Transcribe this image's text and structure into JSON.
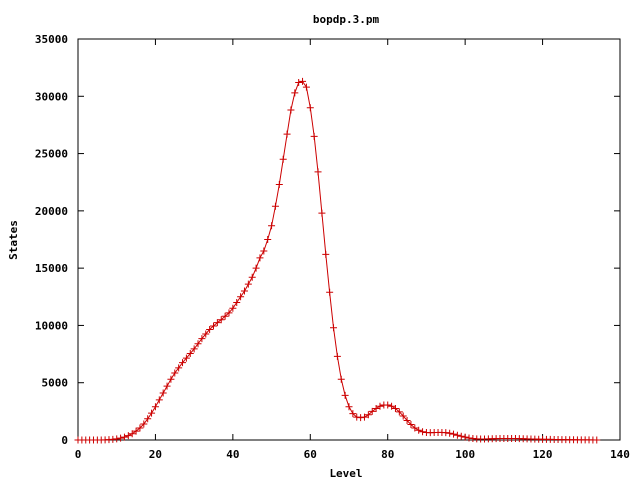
{
  "chart_data": {
    "type": "line",
    "title": "bopdp.3.pm",
    "xlabel": "Level",
    "ylabel": "States",
    "xlim": [
      0,
      140
    ],
    "ylim": [
      0,
      35000
    ],
    "xticks": [
      0,
      20,
      40,
      60,
      80,
      100,
      120,
      140
    ],
    "yticks": [
      0,
      5000,
      10000,
      15000,
      20000,
      25000,
      30000,
      35000
    ],
    "grid": false,
    "legend": "none",
    "series": [
      {
        "color": "#cc0000",
        "marker": "plus",
        "points": [
          [
            0,
            0
          ],
          [
            1,
            0
          ],
          [
            2,
            0
          ],
          [
            3,
            0
          ],
          [
            4,
            0
          ],
          [
            5,
            0
          ],
          [
            6,
            0
          ],
          [
            7,
            10
          ],
          [
            8,
            30
          ],
          [
            9,
            60
          ],
          [
            10,
            100
          ],
          [
            11,
            160
          ],
          [
            12,
            250
          ],
          [
            13,
            380
          ],
          [
            14,
            550
          ],
          [
            15,
            780
          ],
          [
            16,
            1050
          ],
          [
            17,
            1400
          ],
          [
            18,
            1850
          ],
          [
            19,
            2350
          ],
          [
            20,
            2900
          ],
          [
            21,
            3500
          ],
          [
            22,
            4100
          ],
          [
            23,
            4700
          ],
          [
            24,
            5300
          ],
          [
            25,
            5850
          ],
          [
            26,
            6300
          ],
          [
            27,
            6750
          ],
          [
            28,
            7150
          ],
          [
            29,
            7550
          ],
          [
            30,
            7950
          ],
          [
            31,
            8400
          ],
          [
            32,
            8850
          ],
          [
            33,
            9250
          ],
          [
            34,
            9650
          ],
          [
            35,
            9950
          ],
          [
            36,
            10250
          ],
          [
            37,
            10500
          ],
          [
            38,
            10800
          ],
          [
            39,
            11100
          ],
          [
            40,
            11500
          ],
          [
            41,
            12000
          ],
          [
            42,
            12500
          ],
          [
            43,
            13000
          ],
          [
            44,
            13600
          ],
          [
            45,
            14200
          ],
          [
            46,
            15000
          ],
          [
            47,
            15900
          ],
          [
            48,
            16500
          ],
          [
            49,
            17500
          ],
          [
            50,
            18700
          ],
          [
            51,
            20400
          ],
          [
            52,
            22300
          ],
          [
            53,
            24500
          ],
          [
            54,
            26700
          ],
          [
            55,
            28800
          ],
          [
            56,
            30300
          ],
          [
            57,
            31200
          ],
          [
            58,
            31300
          ],
          [
            59,
            30800
          ],
          [
            60,
            29000
          ],
          [
            61,
            26500
          ],
          [
            62,
            23400
          ],
          [
            63,
            19800
          ],
          [
            64,
            16200
          ],
          [
            65,
            12900
          ],
          [
            66,
            9800
          ],
          [
            67,
            7300
          ],
          [
            68,
            5300
          ],
          [
            69,
            3900
          ],
          [
            70,
            2900
          ],
          [
            71,
            2300
          ],
          [
            72,
            2000
          ],
          [
            73,
            1950
          ],
          [
            74,
            2000
          ],
          [
            75,
            2200
          ],
          [
            76,
            2500
          ],
          [
            77,
            2750
          ],
          [
            78,
            2950
          ],
          [
            79,
            3050
          ],
          [
            80,
            3050
          ],
          [
            81,
            2950
          ],
          [
            82,
            2750
          ],
          [
            83,
            2450
          ],
          [
            84,
            2100
          ],
          [
            85,
            1700
          ],
          [
            86,
            1350
          ],
          [
            87,
            1050
          ],
          [
            88,
            850
          ],
          [
            89,
            720
          ],
          [
            90,
            650
          ],
          [
            91,
            640
          ],
          [
            92,
            650
          ],
          [
            93,
            660
          ],
          [
            94,
            660
          ],
          [
            95,
            640
          ],
          [
            96,
            590
          ],
          [
            97,
            510
          ],
          [
            98,
            420
          ],
          [
            99,
            330
          ],
          [
            100,
            250
          ],
          [
            101,
            180
          ],
          [
            102,
            130
          ],
          [
            103,
            100
          ],
          [
            104,
            90
          ],
          [
            105,
            90
          ],
          [
            106,
            100
          ],
          [
            107,
            110
          ],
          [
            108,
            120
          ],
          [
            109,
            130
          ],
          [
            110,
            130
          ],
          [
            111,
            130
          ],
          [
            112,
            130
          ],
          [
            113,
            130
          ],
          [
            114,
            120
          ],
          [
            115,
            110
          ],
          [
            116,
            100
          ],
          [
            117,
            90
          ],
          [
            118,
            80
          ],
          [
            119,
            70
          ],
          [
            120,
            60
          ],
          [
            121,
            55
          ],
          [
            122,
            50
          ],
          [
            123,
            45
          ],
          [
            124,
            40
          ],
          [
            125,
            35
          ],
          [
            126,
            30
          ],
          [
            127,
            25
          ],
          [
            128,
            20
          ],
          [
            129,
            15
          ],
          [
            130,
            12
          ],
          [
            131,
            10
          ],
          [
            132,
            8
          ],
          [
            133,
            5
          ],
          [
            134,
            3
          ]
        ]
      }
    ]
  }
}
